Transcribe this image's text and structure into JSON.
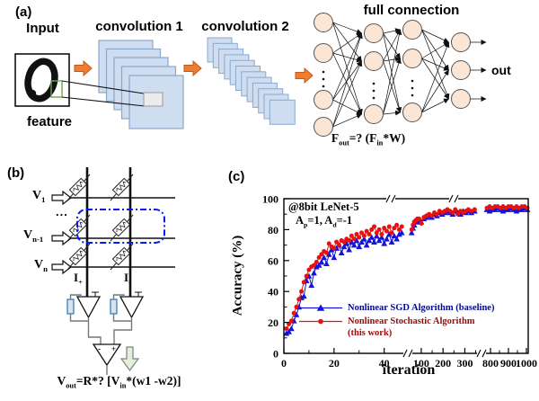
{
  "panel_a": {
    "tag": "(a)",
    "input_label": "Input",
    "feature_label": "feature",
    "conv1_label": "convolution 1",
    "conv2_label": "convolution 2",
    "fc_label": "full connection",
    "out_label": "out",
    "digit": "0",
    "formula": {
      "p1": "F",
      "s1": "out",
      "p2": "=? (F",
      "s2": "in",
      "p3": "*W)"
    }
  },
  "panel_b": {
    "tag": "(b)",
    "row_labels": [
      {
        "p1": "V",
        "s1": "1"
      },
      {
        "p1": "V",
        "s1": "n-1"
      },
      {
        "p1": "V",
        "s1": "n"
      }
    ],
    "ellipsis": "...",
    "current_plus": {
      "p1": "I",
      "s1": "+"
    },
    "current_minus": {
      "p1": "I",
      "s1": "-"
    },
    "opamp_minus": "-",
    "opamp_plus": "+",
    "formula": {
      "p1": "V",
      "s1": "out",
      "p2": "=R*? [V",
      "s2": "in",
      "p3": "*(w1 -w2)]"
    }
  },
  "panel_c": {
    "tag": "(c)",
    "annotation_line1": "@8bit LeNet-5",
    "annotation_line2": {
      "p1": "A",
      "s1": "p",
      "p2": "=1, A",
      "s2": "d",
      "p3": "=-1"
    },
    "legend": [
      {
        "label": "Nonlinear SGD Algorithm (baseline)",
        "label2": "",
        "color": "#1414d8",
        "text_color": "#000a8c",
        "marker": "triangle"
      },
      {
        "label": "Nonlinear Stochastic Algorithm",
        "label2": "(this work)",
        "color": "#e81010",
        "text_color": "#9c0a0a",
        "marker": "circle"
      }
    ]
  },
  "chart_data": {
    "type": "line",
    "title": "",
    "xlabel": "iteration",
    "ylabel": "Accuracy (%)",
    "ylim": [
      0,
      100
    ],
    "grid": false,
    "legend_position": "inside lower-right",
    "y_major_ticks": [
      0,
      20,
      40,
      60,
      80,
      100
    ],
    "y_minor_ticks": [
      10,
      30,
      50,
      70,
      90
    ],
    "x_axis_broken": true,
    "x_segments": [
      {
        "range": [
          0,
          48
        ],
        "major_ticks": [
          0,
          20,
          40
        ],
        "minor_ticks": [
          10,
          30
        ]
      },
      {
        "range": [
          55,
          360
        ],
        "major_ticks": [
          100,
          200,
          300
        ],
        "minor_ticks": [
          150,
          250,
          350
        ]
      },
      {
        "range": [
          770,
          1010
        ],
        "major_ticks": [
          800,
          900,
          1000
        ],
        "minor_ticks": [
          850,
          950
        ]
      }
    ],
    "series": [
      {
        "name": "Nonlinear SGD Algorithm (baseline)",
        "color": "#1414d8",
        "marker": "triangle",
        "points": [
          [
            1,
            13
          ],
          [
            2,
            14
          ],
          [
            3,
            16
          ],
          [
            4,
            21
          ],
          [
            5,
            25
          ],
          [
            6,
            30
          ],
          [
            7,
            36
          ],
          [
            8,
            37
          ],
          [
            9,
            47
          ],
          [
            10,
            50
          ],
          [
            11,
            44
          ],
          [
            12,
            52
          ],
          [
            13,
            56
          ],
          [
            14,
            57
          ],
          [
            15,
            59
          ],
          [
            16,
            62
          ],
          [
            17,
            58
          ],
          [
            18,
            64
          ],
          [
            19,
            67
          ],
          [
            20,
            62
          ],
          [
            21,
            68
          ],
          [
            22,
            70
          ],
          [
            23,
            65
          ],
          [
            24,
            69
          ],
          [
            25,
            71
          ],
          [
            26,
            67
          ],
          [
            27,
            72
          ],
          [
            28,
            70
          ],
          [
            29,
            73
          ],
          [
            30,
            69
          ],
          [
            31,
            72
          ],
          [
            32,
            74
          ],
          [
            33,
            70
          ],
          [
            34,
            73
          ],
          [
            35,
            75
          ],
          [
            36,
            72
          ],
          [
            37,
            76
          ],
          [
            38,
            73
          ],
          [
            39,
            75
          ],
          [
            40,
            71
          ],
          [
            41,
            74
          ],
          [
            42,
            77
          ],
          [
            43,
            72
          ],
          [
            44,
            76
          ],
          [
            45,
            74
          ],
          [
            46,
            77
          ],
          [
            47,
            78
          ],
          [
            56,
            78
          ],
          [
            62,
            81
          ],
          [
            68,
            83
          ],
          [
            75,
            85
          ],
          [
            82,
            85
          ],
          [
            90,
            86
          ],
          [
            100,
            85
          ],
          [
            112,
            87
          ],
          [
            124,
            88
          ],
          [
            136,
            89
          ],
          [
            148,
            88
          ],
          [
            160,
            90
          ],
          [
            172,
            89
          ],
          [
            184,
            91
          ],
          [
            196,
            90
          ],
          [
            208,
            91
          ],
          [
            220,
            92
          ],
          [
            232,
            91
          ],
          [
            244,
            90
          ],
          [
            256,
            92
          ],
          [
            268,
            91
          ],
          [
            280,
            90
          ],
          [
            292,
            92
          ],
          [
            304,
            91
          ],
          [
            316,
            92
          ],
          [
            330,
            91
          ],
          [
            345,
            92
          ],
          [
            780,
            93
          ],
          [
            795,
            92
          ],
          [
            810,
            93
          ],
          [
            825,
            93
          ],
          [
            840,
            94
          ],
          [
            855,
            93
          ],
          [
            870,
            92
          ],
          [
            885,
            93
          ],
          [
            900,
            93
          ],
          [
            915,
            94
          ],
          [
            930,
            93
          ],
          [
            945,
            92
          ],
          [
            960,
            93
          ],
          [
            975,
            93
          ],
          [
            990,
            94
          ],
          [
            1005,
            93
          ]
        ]
      },
      {
        "name": "Nonlinear Stochastic Algorithm (this work)",
        "color": "#e81010",
        "marker": "circle",
        "points": [
          [
            1,
            16
          ],
          [
            2,
            19
          ],
          [
            3,
            21
          ],
          [
            4,
            26
          ],
          [
            5,
            30
          ],
          [
            6,
            35
          ],
          [
            7,
            40
          ],
          [
            8,
            46
          ],
          [
            9,
            50
          ],
          [
            10,
            54
          ],
          [
            11,
            56
          ],
          [
            12,
            57
          ],
          [
            13,
            59
          ],
          [
            14,
            62
          ],
          [
            15,
            64
          ],
          [
            16,
            66
          ],
          [
            17,
            65
          ],
          [
            18,
            71
          ],
          [
            19,
            69
          ],
          [
            20,
            68
          ],
          [
            21,
            72
          ],
          [
            22,
            70
          ],
          [
            23,
            73
          ],
          [
            24,
            72
          ],
          [
            25,
            74
          ],
          [
            26,
            73
          ],
          [
            27,
            76
          ],
          [
            28,
            74
          ],
          [
            29,
            77
          ],
          [
            30,
            75
          ],
          [
            31,
            78
          ],
          [
            32,
            76
          ],
          [
            33,
            79
          ],
          [
            34,
            77
          ],
          [
            35,
            80
          ],
          [
            36,
            82
          ],
          [
            37,
            78
          ],
          [
            38,
            80
          ],
          [
            39,
            77
          ],
          [
            40,
            81
          ],
          [
            41,
            79
          ],
          [
            42,
            82
          ],
          [
            43,
            78
          ],
          [
            44,
            81
          ],
          [
            45,
            83
          ],
          [
            46,
            80
          ],
          [
            47,
            82
          ],
          [
            56,
            80
          ],
          [
            62,
            83
          ],
          [
            68,
            85
          ],
          [
            75,
            86
          ],
          [
            82,
            87
          ],
          [
            90,
            87
          ],
          [
            100,
            84
          ],
          [
            112,
            88
          ],
          [
            124,
            89
          ],
          [
            136,
            90
          ],
          [
            148,
            89
          ],
          [
            160,
            91
          ],
          [
            172,
            90
          ],
          [
            184,
            92
          ],
          [
            196,
            91
          ],
          [
            208,
            92
          ],
          [
            220,
            93
          ],
          [
            232,
            92
          ],
          [
            244,
            91
          ],
          [
            256,
            93
          ],
          [
            268,
            90
          ],
          [
            280,
            92
          ],
          [
            292,
            91
          ],
          [
            304,
            92
          ],
          [
            316,
            93
          ],
          [
            330,
            92
          ],
          [
            345,
            93
          ],
          [
            780,
            94
          ],
          [
            795,
            95
          ],
          [
            810,
            94
          ],
          [
            825,
            95
          ],
          [
            840,
            95
          ],
          [
            855,
            94
          ],
          [
            870,
            95
          ],
          [
            885,
            94
          ],
          [
            900,
            95
          ],
          [
            915,
            95
          ],
          [
            930,
            94
          ],
          [
            945,
            95
          ],
          [
            960,
            94
          ],
          [
            975,
            95
          ],
          [
            990,
            95
          ],
          [
            1005,
            94
          ]
        ]
      }
    ]
  }
}
